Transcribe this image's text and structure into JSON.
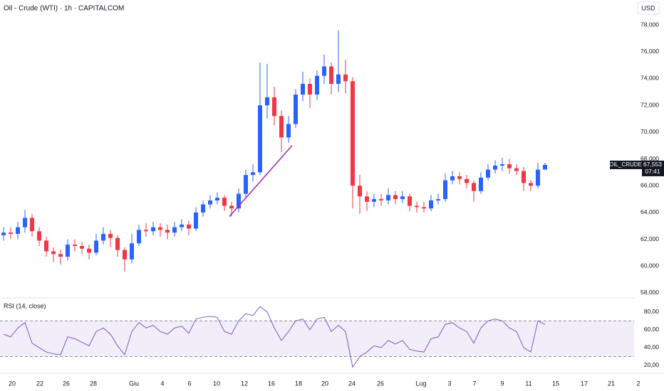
{
  "chart_data": [
    {
      "type": "candlestick",
      "title": "Oil - Crude (WTI) · 1h · CAPITALCOM",
      "currency": "USD",
      "symbol": "OIL_CRUDE",
      "last_price": {
        "value": 67.553,
        "label": "67,553"
      },
      "countdown": "07:41",
      "up_color": "#2962ff",
      "down_color": "#f23645",
      "xlim": [
        -0.5,
        89.5
      ],
      "ylim": [
        57.68,
        79.86
      ],
      "yticks": [
        {
          "value": 58,
          "label": "58,000"
        },
        {
          "value": 60,
          "label": "60,000"
        },
        {
          "value": 62,
          "label": "62,000"
        },
        {
          "value": 64,
          "label": "64,000"
        },
        {
          "value": 66,
          "label": "66,000"
        },
        {
          "value": 68,
          "label": "68,000"
        },
        {
          "value": 70,
          "label": "70,000"
        },
        {
          "value": 72,
          "label": "72,000"
        },
        {
          "value": 74,
          "label": "74,000"
        },
        {
          "value": 76,
          "label": "76,000"
        },
        {
          "value": 78,
          "label": "78,000"
        }
      ],
      "open": [
        62.3,
        62.5,
        62.4,
        62.9,
        63.6,
        62.6,
        61.9,
        61.1,
        60.9,
        60.7,
        61.6,
        61.5,
        61.3,
        61.0,
        61.9,
        62.4,
        62.1,
        61.2,
        60.5,
        61.7,
        62.7,
        62.6,
        62.9,
        62.7,
        62.5,
        62.9,
        63.1,
        62.8,
        64.0,
        64.6,
        64.9,
        65.1,
        64.5,
        64.3,
        65.4,
        66.8,
        67.0,
        72.0,
        72.6,
        71.2,
        69.6,
        70.6,
        72.8,
        73.6,
        72.8,
        74.2,
        74.9,
        73.6,
        74.3,
        73.8,
        66.0,
        65.2,
        64.8,
        65.0,
        64.9,
        65.3,
        65.0,
        65.2,
        64.5,
        64.4,
        64.3,
        64.9,
        65.0,
        66.4,
        66.7,
        66.5,
        66.2,
        65.6,
        66.6,
        67.2,
        67.5,
        67.6,
        67.3,
        67.1,
        66.2,
        66.0,
        67.2
      ],
      "high": [
        62.9,
        62.9,
        63.3,
        64.2,
        63.9,
        62.9,
        62.2,
        61.4,
        61.2,
        62.0,
        62.0,
        61.8,
        61.6,
        62.4,
        62.9,
        62.7,
        62.3,
        61.4,
        62.4,
        63.1,
        63.2,
        63.3,
        63.2,
        63.1,
        63.3,
        63.5,
        63.4,
        64.4,
        64.9,
        65.3,
        65.5,
        65.3,
        64.8,
        65.8,
        67.2,
        67.6,
        75.2,
        75.1,
        73.4,
        71.6,
        71.2,
        73.2,
        74.5,
        74.0,
        74.6,
        75.8,
        75.2,
        77.6,
        75.4,
        74.1,
        66.8,
        65.6,
        65.4,
        65.4,
        65.8,
        65.6,
        65.6,
        65.4,
        64.8,
        64.8,
        65.3,
        65.4,
        66.9,
        67.1,
        67.0,
        66.8,
        66.4,
        67.0,
        67.6,
        67.9,
        68.1,
        68.0,
        67.6,
        67.4,
        66.4,
        67.7,
        67.7
      ],
      "low": [
        61.9,
        62.0,
        62.0,
        62.5,
        62.2,
        61.5,
        60.7,
        60.3,
        60.1,
        60.4,
        61.1,
        60.9,
        60.5,
        60.8,
        61.6,
        61.4,
        60.7,
        59.6,
        60.2,
        61.5,
        62.2,
        62.3,
        62.2,
        62.0,
        62.2,
        62.6,
        62.3,
        62.6,
        63.7,
        64.3,
        64.6,
        64.1,
        63.7,
        64.0,
        65.1,
        66.3,
        66.8,
        71.0,
        70.5,
        68.5,
        69.2,
        70.3,
        72.3,
        71.8,
        72.4,
        73.6,
        72.8,
        73.0,
        72.9,
        64.3,
        63.9,
        64.1,
        64.4,
        64.5,
        64.6,
        64.6,
        64.7,
        64.1,
        64.0,
        64.0,
        64.1,
        64.6,
        64.8,
        66.1,
        66.1,
        65.8,
        64.8,
        65.4,
        66.4,
        66.9,
        67.1,
        66.9,
        66.8,
        65.6,
        65.6,
        65.8,
        67.2
      ],
      "close": [
        62.5,
        62.4,
        62.9,
        63.6,
        62.6,
        61.9,
        61.1,
        60.9,
        60.7,
        61.6,
        61.5,
        61.3,
        61.0,
        61.9,
        62.4,
        62.1,
        61.2,
        60.5,
        61.7,
        62.7,
        62.6,
        62.9,
        62.7,
        62.5,
        62.9,
        63.1,
        62.8,
        64.0,
        64.6,
        64.9,
        65.1,
        64.5,
        64.3,
        65.4,
        66.8,
        67.0,
        72.0,
        72.6,
        71.2,
        69.6,
        70.6,
        72.8,
        73.6,
        72.8,
        74.2,
        74.9,
        73.6,
        74.3,
        73.8,
        66.0,
        65.2,
        64.8,
        65.0,
        64.9,
        65.3,
        65.0,
        65.2,
        64.5,
        64.4,
        64.3,
        64.9,
        65.0,
        66.4,
        66.7,
        66.5,
        66.2,
        65.6,
        66.6,
        67.2,
        67.5,
        67.6,
        67.3,
        67.1,
        66.2,
        66.0,
        67.2,
        67.553
      ],
      "annotations": [
        {
          "x": [
            31.7,
            40.5
          ],
          "y": [
            63.7,
            69.0
          ],
          "color": "#9c27b0"
        }
      ]
    },
    {
      "type": "line",
      "title": "RSI (14, close)",
      "color": "#7e57c2",
      "band": [
        30,
        70
      ],
      "band_color": "#7e57c2",
      "xlim": [
        -0.5,
        89.5
      ],
      "ylim": [
        12,
        95
      ],
      "yticks": [
        {
          "value": 20,
          "label": "20,00"
        },
        {
          "value": 40,
          "label": "40,00"
        },
        {
          "value": 60,
          "label": "60,00"
        },
        {
          "value": 80,
          "label": "80,00"
        }
      ],
      "values": [
        55,
        52,
        62,
        68,
        45,
        40,
        35,
        33,
        32,
        52,
        50,
        46,
        42,
        58,
        62,
        55,
        42,
        32,
        58,
        68,
        62,
        65,
        58,
        55,
        62,
        64,
        56,
        72,
        74,
        75,
        74,
        58,
        55,
        70,
        78,
        76,
        86,
        80,
        62,
        48,
        58,
        70,
        72,
        60,
        72,
        74,
        58,
        65,
        58,
        18,
        30,
        35,
        42,
        40,
        48,
        44,
        48,
        38,
        36,
        35,
        50,
        52,
        66,
        68,
        62,
        58,
        45,
        62,
        70,
        72,
        70,
        62,
        58,
        40,
        35,
        70,
        66
      ],
      "xticks": [
        {
          "value": 1.2,
          "label": "20"
        },
        {
          "value": 5.1,
          "label": "22"
        },
        {
          "value": 8.8,
          "label": "26"
        },
        {
          "value": 12.6,
          "label": "28"
        },
        {
          "value": 18.3,
          "label": "Giu"
        },
        {
          "value": 22.3,
          "label": "4"
        },
        {
          "value": 26.1,
          "label": "6"
        },
        {
          "value": 29.9,
          "label": "10"
        },
        {
          "value": 33.8,
          "label": "12"
        },
        {
          "value": 37.6,
          "label": "16"
        },
        {
          "value": 41.4,
          "label": "18"
        },
        {
          "value": 45.1,
          "label": "20"
        },
        {
          "value": 48.9,
          "label": "24"
        },
        {
          "value": 52.9,
          "label": "26"
        },
        {
          "value": 58.6,
          "label": "Lug"
        },
        {
          "value": 62.6,
          "label": "3"
        },
        {
          "value": 66.1,
          "label": "7"
        },
        {
          "value": 70,
          "label": "9"
        },
        {
          "value": 73.7,
          "label": "11"
        },
        {
          "value": 77.5,
          "label": "15"
        },
        {
          "value": 81.5,
          "label": "17"
        },
        {
          "value": 85.3,
          "label": "21"
        },
        {
          "value": 89.1,
          "label": "2"
        }
      ]
    }
  ]
}
